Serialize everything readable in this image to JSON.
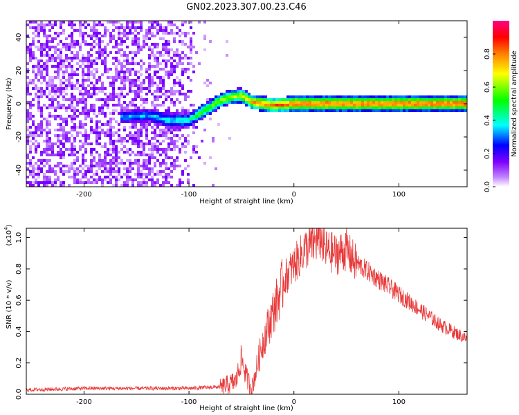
{
  "title": "GN02.2023.307.00.23.C46",
  "chart_data": [
    {
      "type": "heatmap",
      "xlabel": "Height of straight line (km)",
      "ylabel": "Frequency (Hz)",
      "xlim": [
        -255,
        165
      ],
      "ylim": [
        -50,
        50
      ],
      "xticks": [
        -200,
        -100,
        0,
        100
      ],
      "yticks": [
        -40,
        -20,
        0,
        20,
        40
      ],
      "colorbar": {
        "label": "Normalized spectral amplitude",
        "range": [
          0.0,
          1.0
        ],
        "ticks": [
          0.0,
          0.2,
          0.4,
          0.6,
          0.8
        ],
        "colormap": [
          "#ffffff",
          "#c080ff",
          "#7f00ff",
          "#0000ff",
          "#00ffff",
          "#00ff00",
          "#ffff00",
          "#ff8000",
          "#ff0000",
          "#ff0080"
        ]
      },
      "ridge": {
        "x": [
          -160,
          -140,
          -120,
          -100,
          -90,
          -80,
          -70,
          -60,
          -50,
          -40,
          -30,
          -20,
          0,
          50,
          100,
          165
        ],
        "freq": [
          -8,
          -7,
          -10,
          -10,
          -6,
          -2,
          2,
          4,
          5,
          1,
          0,
          -1,
          0,
          0,
          0,
          0
        ],
        "amplitude": [
          0.35,
          0.35,
          0.4,
          0.45,
          0.55,
          0.6,
          0.65,
          0.65,
          0.7,
          0.8,
          0.85,
          0.85,
          0.9,
          0.9,
          0.9,
          0.9
        ]
      },
      "noise_region_x": [
        -255,
        -85
      ]
    },
    {
      "type": "line",
      "xlabel": "Height of straight line (km)",
      "ylabel": "SNR (10 * v/v)",
      "y_multiplier": "(x10",
      "y_multiplier_exp": "4",
      "y_multiplier_close": ")",
      "xlim": [
        -255,
        165
      ],
      "ylim": [
        0.0,
        1.06
      ],
      "xticks": [
        -200,
        -100,
        0,
        100
      ],
      "yticks": [
        0.0,
        0.2,
        0.4,
        0.6,
        0.8,
        1.0
      ],
      "color": "#e83a3a",
      "series": [
        {
          "x": [
            -255,
            -200,
            -150,
            -100,
            -70,
            -55,
            -50,
            -45,
            -40,
            -35,
            -30,
            -25,
            -20,
            -15,
            -10,
            -5,
            0,
            10,
            20,
            25,
            30,
            40,
            50,
            60,
            80,
            100,
            120,
            140,
            165
          ],
          "values": [
            0.03,
            0.04,
            0.04,
            0.04,
            0.05,
            0.1,
            0.25,
            0.12,
            0.05,
            0.2,
            0.35,
            0.45,
            0.55,
            0.65,
            0.75,
            0.8,
            0.85,
            0.95,
            1.0,
            1.03,
            0.95,
            0.92,
            0.95,
            0.85,
            0.75,
            0.65,
            0.55,
            0.45,
            0.36
          ]
        }
      ]
    }
  ]
}
